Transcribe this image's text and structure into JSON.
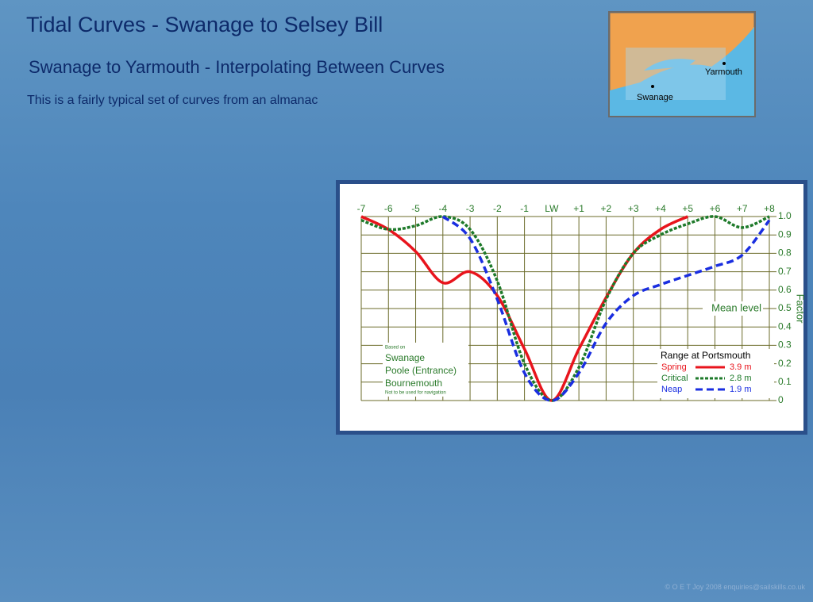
{
  "title": "Tidal Curves - Swanage to Selsey Bill",
  "subtitle": "Swanage to Yarmouth - Interpolating Between Curves",
  "description": "This is a fairly typical set of curves from an almanac",
  "map": {
    "labels": [
      "Yarmouth",
      "Swanage"
    ]
  },
  "footer": "© O E T Joy 2008 enquiries@sailskills.co.uk",
  "chart_data": {
    "type": "line",
    "categories": [
      "-7",
      "-6",
      "-5",
      "-4",
      "-3",
      "-2",
      "-1",
      "LW",
      "+1",
      "+2",
      "+3",
      "+4",
      "+5",
      "+6",
      "+7",
      "+8"
    ],
    "ylabel": "Factor",
    "ylim": [
      0,
      1
    ],
    "yticks": [
      0,
      0.1,
      0.2,
      0.3,
      0.4,
      {
        "value": 0.5,
        "label": "0.5"
      },
      0.6,
      0.7,
      0.8,
      0.9,
      {
        "value": 1,
        "label": "1.0"
      }
    ],
    "grid": true,
    "annotation": "Mean level",
    "notes": [
      "Based on",
      "Swanage",
      "Poole (Entrance)",
      "Bournemouth",
      "Not to be used for navigation"
    ],
    "legend_title": "Range at Portsmouth",
    "series": [
      {
        "name": "Spring",
        "color": "#e8141c",
        "style": "solid",
        "range": "3.9 m",
        "values": [
          1.0,
          0.93,
          0.81,
          0.64,
          0.7,
          0.57,
          0.28,
          0,
          0.28,
          0.56,
          0.8,
          0.93,
          1.0,
          null,
          null,
          null
        ]
      },
      {
        "name": "Critical",
        "color": "#1e7a2a",
        "style": "dotted",
        "range": "2.8 m",
        "values": [
          0.98,
          0.93,
          0.95,
          1.0,
          0.93,
          0.65,
          0.2,
          0,
          0.18,
          0.55,
          0.8,
          0.9,
          0.96,
          1.0,
          0.94,
          1.0
        ]
      },
      {
        "name": "Neap",
        "color": "#1a2ee0",
        "style": "dashed",
        "range": "1.9 m",
        "values": [
          null,
          null,
          null,
          1.0,
          0.88,
          0.55,
          0.15,
          0,
          0.15,
          0.42,
          0.57,
          0.63,
          0.68,
          0.73,
          0.79,
          0.98
        ]
      }
    ]
  }
}
